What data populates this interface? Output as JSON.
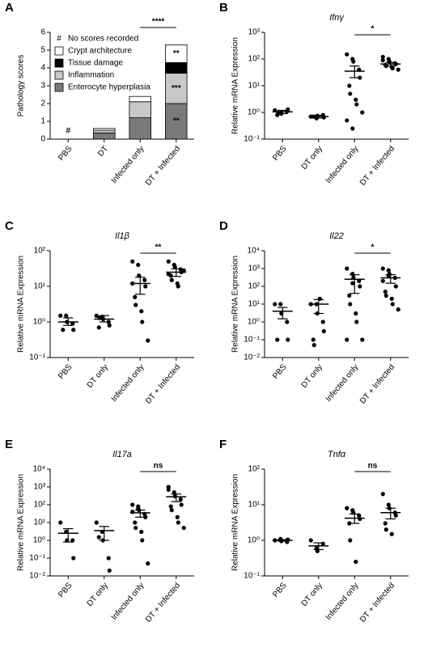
{
  "chart_data": [
    {
      "label": "A",
      "type": "bar",
      "stacked": true,
      "ylabel": "Pathology scores",
      "categories": [
        "PBS",
        "DT",
        "Infected only",
        "DT + Infected"
      ],
      "series": [
        {
          "name": "Crypt architecture",
          "color": "#ffffff",
          "values": [
            0,
            0.1,
            0.3,
            1.0
          ]
        },
        {
          "name": "Tissue damage",
          "color": "#000000",
          "values": [
            0,
            0,
            0,
            0.6
          ]
        },
        {
          "name": "Inflammation",
          "color": "#c8c8c8",
          "values": [
            0,
            0.15,
            0.9,
            1.7
          ]
        },
        {
          "name": "Enterocyte hyperplasia",
          "color": "#7a7a7a",
          "values": [
            0,
            0.35,
            1.2,
            2.0
          ]
        }
      ],
      "no_scores_note": {
        "symbol": "#",
        "text": "No scores recorded"
      },
      "annotations": [
        {
          "text": "#",
          "category": "PBS"
        },
        {
          "text": "***",
          "category": "DT + Infected",
          "series": "Inflammation"
        },
        {
          "text": "**",
          "category": "DT + Infected",
          "series": "Crypt architecture"
        },
        {
          "text": "**",
          "category": "DT + Infected",
          "series": "Enterocyte hyperplasia"
        }
      ],
      "significance": {
        "between": [
          "Infected only",
          "DT + Infected"
        ],
        "label": "****"
      },
      "ylim": [
        0,
        6
      ],
      "yticks": [
        0,
        1,
        2,
        3,
        4,
        5,
        6
      ]
    },
    {
      "label": "B",
      "type": "dot",
      "title": "Ifnγ",
      "ylabel": "Relative mRNA Expression",
      "log_scale": true,
      "color": "#000000",
      "categories": [
        "PBS",
        "DT only",
        "Infected only",
        "DT + Infected"
      ],
      "values": [
        [
          1.2,
          1.0,
          0.9,
          1.1,
          1.3,
          0.8,
          1.0
        ],
        [
          0.7,
          0.6,
          0.75,
          0.8,
          0.65,
          0.7
        ],
        [
          150,
          100,
          80,
          40,
          20,
          10,
          5,
          3,
          2,
          1,
          0.5,
          0.25
        ],
        [
          120,
          100,
          80,
          70,
          65,
          60,
          55,
          50,
          45,
          40,
          90
        ]
      ],
      "means": [
        1.05,
        0.7,
        35,
        65
      ],
      "error_low": [
        0.9,
        0.62,
        20,
        55
      ],
      "error_high": [
        1.2,
        0.78,
        55,
        75
      ],
      "significance": {
        "between": [
          "Infected only",
          "DT + Infected"
        ],
        "label": "*"
      },
      "ylim": [
        0.1,
        1000
      ],
      "yticks": [
        {
          "value": 0.1,
          "label": "10⁻¹"
        },
        {
          "value": 1,
          "label": "10⁰"
        },
        {
          "value": 10,
          "label": "10¹"
        },
        {
          "value": 100,
          "label": "10²"
        },
        {
          "value": 1000,
          "label": "10³"
        }
      ]
    },
    {
      "label": "C",
      "type": "dot",
      "title": "Il1β",
      "ylabel": "Relative mRNA Expression",
      "log_scale": true,
      "color": "#000000",
      "categories": [
        "PBS",
        "DT only",
        "Infected only",
        "DT + Infected"
      ],
      "values": [
        [
          1.5,
          1.5,
          1.0,
          0.9,
          0.6,
          0.6
        ],
        [
          1.5,
          1.4,
          1.2,
          1.0,
          0.8,
          0.7,
          1.3
        ],
        [
          50,
          40,
          20,
          15,
          10,
          5,
          3,
          2,
          1,
          0.3,
          12
        ],
        [
          50,
          40,
          35,
          30,
          25,
          20,
          15,
          12,
          10,
          28,
          22
        ]
      ],
      "means": [
        1.0,
        1.2,
        12,
        25
      ],
      "error_low": [
        0.8,
        1.0,
        6,
        19
      ],
      "error_high": [
        1.3,
        1.5,
        18,
        31
      ],
      "significance": {
        "between": [
          "Infected only",
          "DT + Infected"
        ],
        "label": "**"
      },
      "ylim": [
        0.1,
        100
      ],
      "yticks": [
        {
          "value": 0.1,
          "label": "10⁻¹"
        },
        {
          "value": 1,
          "label": "10⁰"
        },
        {
          "value": 10,
          "label": "10¹"
        },
        {
          "value": 100,
          "label": "10²"
        }
      ]
    },
    {
      "label": "D",
      "type": "dot",
      "title": "Il22",
      "ylabel": "Relative mRNA Expression",
      "log_scale": true,
      "color": "#000000",
      "categories": [
        "PBS",
        "DT only",
        "Infected only",
        "DT + Infected"
      ],
      "values": [
        [
          10,
          10,
          3,
          1,
          0.1,
          0.1
        ],
        [
          10,
          10,
          3,
          1,
          0.3,
          0.1,
          0.05,
          20
        ],
        [
          1000,
          500,
          300,
          200,
          100,
          30,
          10,
          3,
          1,
          0.1,
          0.1,
          150
        ],
        [
          1000,
          800,
          500,
          300,
          100,
          50,
          30,
          20,
          10,
          5,
          200,
          400
        ]
      ],
      "means": [
        4,
        10,
        250,
        300
      ],
      "error_low": [
        1.5,
        3,
        40,
        150
      ],
      "error_high": [
        6.5,
        18,
        450,
        450
      ],
      "significance": {
        "between": [
          "Infected only",
          "DT + Infected"
        ],
        "label": "*"
      },
      "ylim": [
        0.01,
        10000
      ],
      "yticks": [
        {
          "value": 0.01,
          "label": "10⁻²"
        },
        {
          "value": 0.1,
          "label": "10⁻¹"
        },
        {
          "value": 1,
          "label": "10⁰"
        },
        {
          "value": 10,
          "label": "10¹"
        },
        {
          "value": 100,
          "label": "10²"
        },
        {
          "value": 1000,
          "label": "10³"
        },
        {
          "value": 10000,
          "label": "10⁴"
        }
      ]
    },
    {
      "label": "E",
      "type": "dot",
      "title": "Il17a",
      "ylabel": "Relative mRNA Expression",
      "log_scale": true,
      "color": "#000000",
      "categories": [
        "PBS",
        "DT only",
        "Infected only",
        "DT + Infected"
      ],
      "values": [
        [
          10,
          3,
          1,
          1,
          0.1
        ],
        [
          10,
          3,
          1,
          0.1,
          0.02,
          1.5
        ],
        [
          100,
          80,
          50,
          30,
          20,
          10,
          5,
          3,
          1,
          0.05,
          40,
          60
        ],
        [
          1000,
          500,
          300,
          200,
          100,
          80,
          50,
          20,
          10,
          5,
          700
        ]
      ],
      "means": [
        2.5,
        3.5,
        35,
        280
      ],
      "error_low": [
        0.8,
        1,
        20,
        150
      ],
      "error_high": [
        4.5,
        6,
        50,
        400
      ],
      "significance": {
        "between": [
          "Infected only",
          "DT + Infected"
        ],
        "label": "ns"
      },
      "ylim": [
        0.01,
        10000
      ],
      "yticks": [
        {
          "value": 0.01,
          "label": "10⁻²"
        },
        {
          "value": 0.1,
          "label": "10⁻¹"
        },
        {
          "value": 1,
          "label": "10⁰"
        },
        {
          "value": 10,
          "label": "10¹"
        },
        {
          "value": 100,
          "label": "10²"
        },
        {
          "value": 1000,
          "label": "10³"
        },
        {
          "value": 10000,
          "label": "10⁴"
        }
      ]
    },
    {
      "label": "F",
      "type": "dot",
      "title": "Tnfα",
      "ylabel": "Relative mRNA Expression",
      "log_scale": true,
      "color": "#000000",
      "categories": [
        "PBS",
        "DT only",
        "Infected only",
        "DT + Infected"
      ],
      "values": [
        [
          1.0,
          1.1,
          0.95,
          0.9,
          1.05
        ],
        [
          1.0,
          0.6,
          0.5,
          0.8
        ],
        [
          8,
          7,
          6,
          5,
          4,
          3,
          1,
          0.25
        ],
        [
          20,
          10,
          8,
          6,
          5,
          3,
          2,
          1.5
        ]
      ],
      "means": [
        1.0,
        0.7,
        4.2,
        6
      ],
      "error_low": [
        0.95,
        0.55,
        3,
        4
      ],
      "error_high": [
        1.05,
        0.85,
        5.5,
        8
      ],
      "significance": {
        "between": [
          "Infected only",
          "DT + Infected"
        ],
        "label": "ns"
      },
      "ylim": [
        0.1,
        100
      ],
      "yticks": [
        {
          "value": 0.1,
          "label": "10⁻¹"
        },
        {
          "value": 1,
          "label": "10⁰"
        },
        {
          "value": 10,
          "label": "10¹"
        },
        {
          "value": 100,
          "label": "10²"
        }
      ]
    }
  ]
}
